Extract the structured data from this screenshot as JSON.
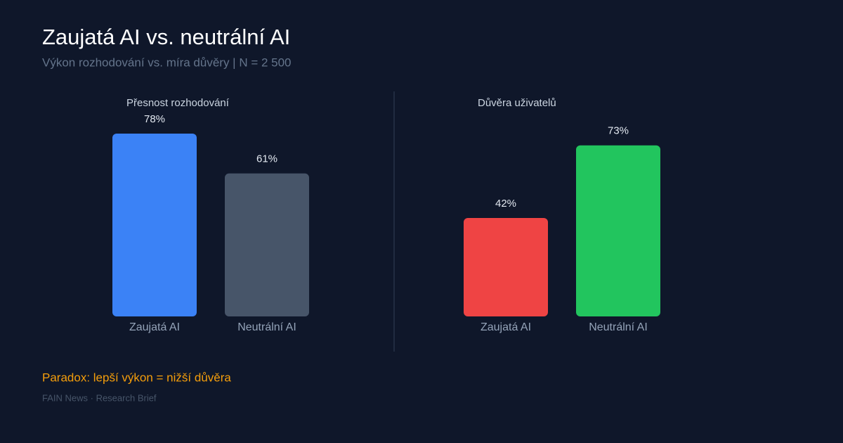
{
  "title": "Zaujatá AI vs. neutrální AI",
  "subtitle": "Výkon rozhodování vs. míra důvěry | N = 2 500",
  "note": "Paradox: lepší výkon = nižší důvěra",
  "source": "FAIN News · Research Brief",
  "chart_data": [
    {
      "type": "bar",
      "title": "Přesnost rozhodování",
      "categories": [
        "Zaujatá AI",
        "Neutrální AI"
      ],
      "values": [
        78,
        61
      ],
      "value_labels": [
        "78%",
        "61%"
      ],
      "colors": [
        "#3b82f6",
        "#475569"
      ]
    },
    {
      "type": "bar",
      "title": "Důvěra uživatelů",
      "categories": [
        "Zaujatá AI",
        "Neutrální AI"
      ],
      "values": [
        42,
        73
      ],
      "value_labels": [
        "42%",
        "73%"
      ],
      "colors": [
        "#ef4444",
        "#22c55e"
      ]
    }
  ]
}
